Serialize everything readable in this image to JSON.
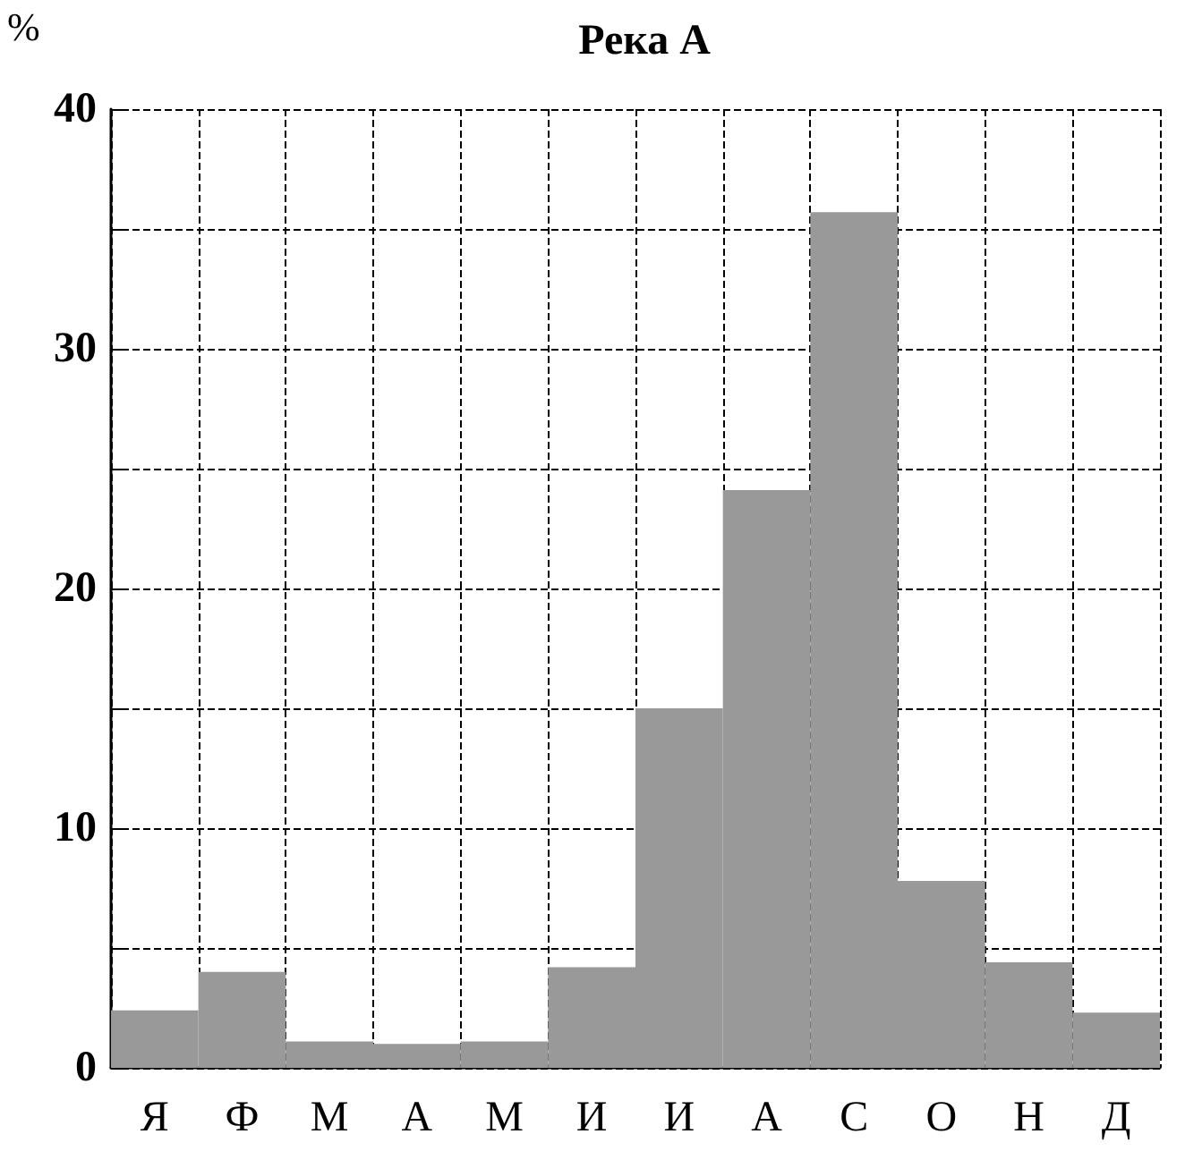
{
  "chart_data": {
    "type": "bar",
    "title": "Река А",
    "ylabel": "%",
    "categories": [
      "Я",
      "Ф",
      "М",
      "А",
      "М",
      "И",
      "И",
      "А",
      "С",
      "О",
      "Н",
      "Д"
    ],
    "values": [
      2.4,
      4.0,
      1.1,
      1.0,
      1.1,
      4.2,
      15.0,
      24.1,
      35.7,
      7.8,
      4.4,
      2.3
    ],
    "color": "#999999",
    "ylim": [
      0,
      40
    ],
    "yticks": [
      0,
      {
        "value": 5,
        "label": null
      },
      10,
      {
        "value": 15,
        "label": null
      },
      20,
      {
        "value": 25,
        "label": null
      },
      30,
      {
        "value": 35,
        "label": null
      },
      40
    ],
    "grid": true,
    "line_style": "dashed"
  }
}
